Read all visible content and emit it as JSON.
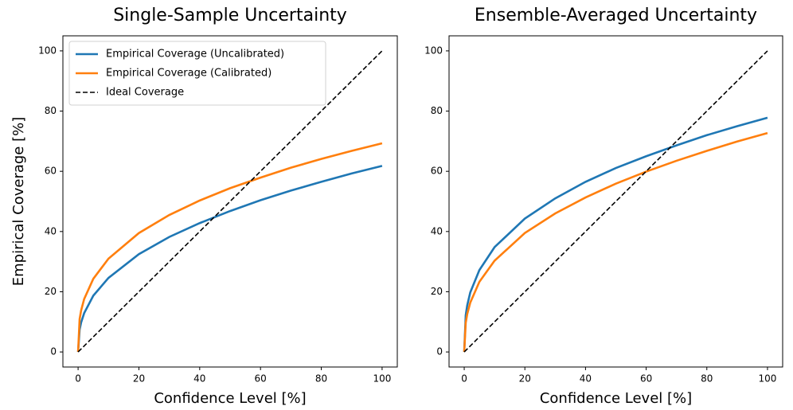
{
  "chart_data": [
    {
      "type": "line",
      "title": "Single-Sample Uncertainty",
      "x_label": "Confidence Level [%]",
      "y_label": "Empirical Coverage [%]",
      "x": [
        0,
        0.5,
        1,
        2,
        5,
        10,
        20,
        30,
        40,
        50,
        60,
        70,
        80,
        90,
        100
      ],
      "series": [
        {
          "name": "Empirical Coverage (Uncalibrated)",
          "color": "#1f77b4",
          "style": "solid",
          "values": [
            0,
            7.4,
            9.8,
            12.9,
            18.7,
            24.6,
            32.5,
            38.2,
            42.8,
            46.8,
            50.4,
            53.6,
            56.5,
            59.3,
            61.8
          ]
        },
        {
          "name": "Empirical Coverage (Calibrated)",
          "color": "#ff7f0e",
          "style": "solid",
          "values": [
            0,
            10.9,
            13.8,
            17.6,
            24.3,
            31.0,
            39.5,
            45.5,
            50.3,
            54.4,
            57.9,
            61.2,
            64.1,
            66.8,
            69.3
          ]
        },
        {
          "name": "Ideal Coverage",
          "color": "#000000",
          "style": "dashed",
          "values": [
            0,
            0.5,
            1,
            2,
            5,
            10,
            20,
            30,
            40,
            50,
            60,
            70,
            80,
            90,
            100
          ]
        }
      ],
      "xlim": [
        -5,
        105
      ],
      "ylim": [
        -5,
        105
      ],
      "xticks": [
        0,
        20,
        40,
        60,
        80,
        100
      ],
      "yticks": [
        0,
        20,
        40,
        60,
        80,
        100
      ],
      "legend": "upper left"
    },
    {
      "type": "line",
      "title": "Ensemble-Averaged Uncertainty",
      "x_label": "Confidence Level [%]",
      "x": [
        0,
        0.5,
        1,
        2,
        5,
        10,
        20,
        30,
        40,
        50,
        60,
        70,
        80,
        90,
        100
      ],
      "series": [
        {
          "color": "#1f77b4",
          "style": "solid",
          "values": [
            0,
            12.2,
            15.5,
            19.8,
            27.2,
            34.8,
            44.3,
            51.0,
            56.5,
            61.1,
            65.0,
            68.6,
            72.0,
            75.0,
            77.8
          ]
        },
        {
          "color": "#ff7f0e",
          "style": "solid",
          "values": [
            0,
            9.7,
            12.6,
            16.4,
            23.3,
            30.3,
            39.5,
            46.0,
            51.3,
            55.9,
            59.9,
            63.5,
            66.8,
            69.9,
            72.7
          ]
        },
        {
          "color": "#000000",
          "style": "dashed",
          "values": [
            0,
            0.5,
            1,
            2,
            5,
            10,
            20,
            30,
            40,
            50,
            60,
            70,
            80,
            90,
            100
          ]
        }
      ],
      "xlim": [
        -5,
        105
      ],
      "ylim": [
        -5,
        105
      ],
      "xticks": [
        0,
        20,
        40,
        60,
        80,
        100
      ],
      "yticks": [
        0,
        20,
        40,
        60,
        80,
        100
      ]
    }
  ]
}
